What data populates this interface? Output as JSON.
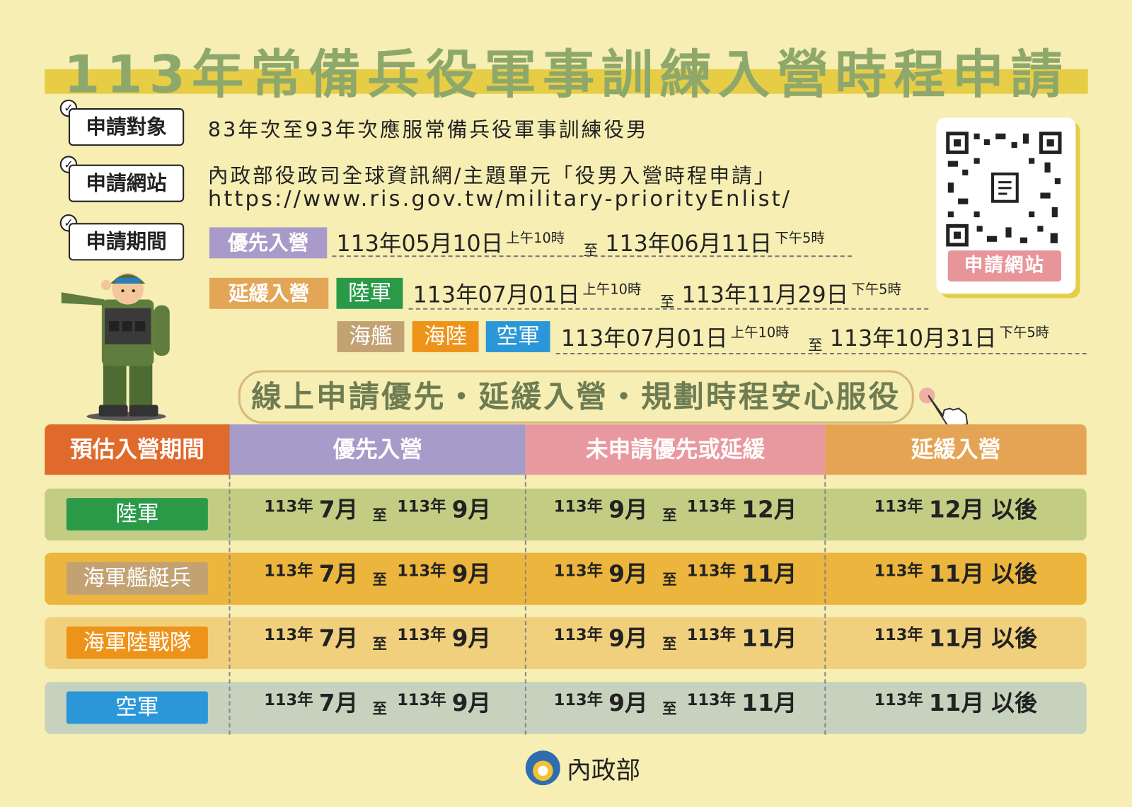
{
  "title": "113年常備兵役軍事訓練入營時程申請",
  "applicants": {
    "label": "申請對象",
    "text": "83年次至93年次應服常備兵役軍事訓練役男"
  },
  "website": {
    "label": "申請網站",
    "lines": [
      "內政部役政司全球資訊網/主題單元「役男入營時程申請」",
      "https://www.ris.gov.tw/military-priorityEnlist/"
    ]
  },
  "period": {
    "label": "申請期間",
    "priority": {
      "tag": "優先入營",
      "start_date": "113年05月10日",
      "start_time": "上午10時",
      "to": "至",
      "end_date": "113年06月11日",
      "end_time": "下午5時"
    },
    "deferred": {
      "tag": "延緩入營",
      "groups": [
        {
          "branches": [
            "陸軍"
          ],
          "start_date": "113年07月01日",
          "start_time": "上午10時",
          "to": "至",
          "end_date": "113年11月29日",
          "end_time": "下午5時"
        },
        {
          "branches": [
            "海艦",
            "海陸",
            "空軍"
          ],
          "start_date": "113年07月01日",
          "start_time": "上午10時",
          "to": "至",
          "end_date": "113年10月31日",
          "end_time": "下午5時"
        }
      ]
    }
  },
  "qr_code": {
    "label": "申請網站"
  },
  "slogan": "線上申請優先・延緩入營・規劃時程安心服役",
  "table": {
    "headers": [
      "預估入營期間",
      "優先入營",
      "未申請優先或延緩",
      "延緩入營"
    ],
    "rows": [
      {
        "branch": "陸軍",
        "priority": {
          "from_year": "113年",
          "from_month": "7月",
          "to": "至",
          "to_year": "113年",
          "to_month": "9月"
        },
        "none": {
          "from_year": "113年",
          "from_month": "9月",
          "to": "至",
          "to_year": "113年",
          "to_month": "12月"
        },
        "deferred": {
          "year": "113年",
          "month": "12月",
          "suffix": "以後"
        }
      },
      {
        "branch": "海軍艦艇兵",
        "priority": {
          "from_year": "113年",
          "from_month": "7月",
          "to": "至",
          "to_year": "113年",
          "to_month": "9月"
        },
        "none": {
          "from_year": "113年",
          "from_month": "9月",
          "to": "至",
          "to_year": "113年",
          "to_month": "11月"
        },
        "deferred": {
          "year": "113年",
          "month": "11月",
          "suffix": "以後"
        }
      },
      {
        "branch": "海軍陸戰隊",
        "priority": {
          "from_year": "113年",
          "from_month": "7月",
          "to": "至",
          "to_year": "113年",
          "to_month": "9月"
        },
        "none": {
          "from_year": "113年",
          "from_month": "9月",
          "to": "至",
          "to_year": "113年",
          "to_month": "11月"
        },
        "deferred": {
          "year": "113年",
          "month": "11月",
          "suffix": "以後"
        }
      },
      {
        "branch": "空軍",
        "priority": {
          "from_year": "113年",
          "from_month": "7月",
          "to": "至",
          "to_year": "113年",
          "to_month": "9月"
        },
        "none": {
          "from_year": "113年",
          "from_month": "9月",
          "to": "至",
          "to_year": "113年",
          "to_month": "11月"
        },
        "deferred": {
          "year": "113年",
          "month": "11月",
          "suffix": "以後"
        }
      }
    ]
  },
  "footer": {
    "agency": "內政部"
  }
}
